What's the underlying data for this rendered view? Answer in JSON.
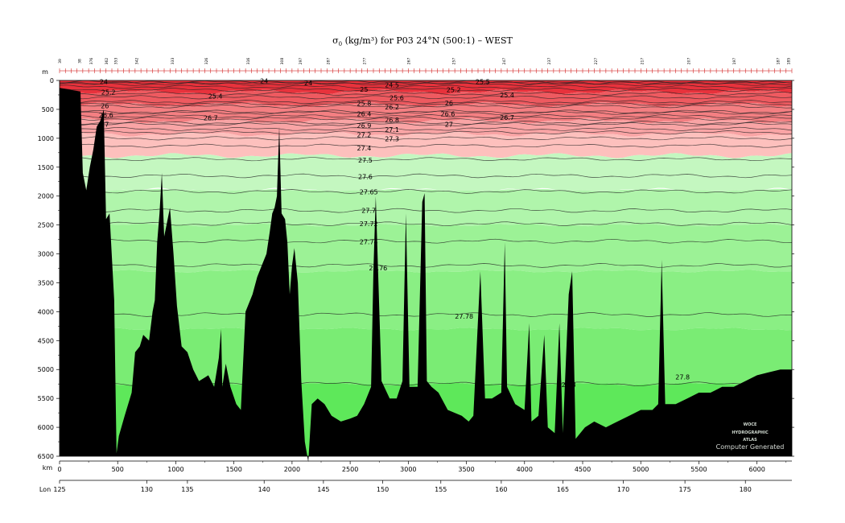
{
  "title": {
    "symbol": "σ",
    "subscript": "0",
    "rest": " (kg/m³) for P03 24°N (500:1) – WEST"
  },
  "axis_labels": {
    "depth_unit": "m",
    "distance_unit": "km",
    "lon": "Lon"
  },
  "watermark": {
    "line1": "WOCE",
    "line2": "HYDROGRAPHIC",
    "line3": "ATLAS",
    "line4": "Computer Generated"
  },
  "colors": {
    "r1": "#e8323c",
    "r2": "#ee5a60",
    "r3": "#f47f82",
    "r4": "#f9a4a5",
    "r5": "#fdc0bd",
    "g1": "#c4f7c0",
    "g2": "#b0f5ab",
    "g3": "#9cf296",
    "g4": "#8aef84",
    "g5": "#7aec74",
    "g6": "#5ee85a",
    "bathymetry": "#000000"
  },
  "chart_data": {
    "type": "heatmap",
    "description_of_axes": "section",
    "x": {
      "label": "km",
      "range": [
        0,
        6300
      ],
      "ticks": [
        0,
        500,
        1000,
        1500,
        2000,
        2500,
        3000,
        3500,
        4000,
        4500,
        5000,
        5500,
        6000
      ]
    },
    "y": {
      "label": "m",
      "range": [
        6500,
        0
      ],
      "ticks": [
        0,
        500,
        1000,
        1500,
        2000,
        2500,
        3000,
        3500,
        4000,
        4500,
        5000,
        5500,
        6000,
        6500
      ]
    },
    "lon": {
      "label": "Lon",
      "ticks": [
        {
          "km": 0,
          "label": "125"
        },
        {
          "km": 750,
          "label": "130"
        },
        {
          "km": 1100,
          "label": "135"
        },
        {
          "km": 1760,
          "label": "140"
        },
        {
          "km": 2270,
          "label": "145"
        },
        {
          "km": 2780,
          "label": "150"
        },
        {
          "km": 3280,
          "label": "155"
        },
        {
          "km": 3800,
          "label": "160"
        },
        {
          "km": 4330,
          "label": "165"
        },
        {
          "km": 4850,
          "label": "170"
        },
        {
          "km": 5380,
          "label": "175"
        },
        {
          "km": 5900,
          "label": "180"
        }
      ]
    },
    "stations": [
      {
        "km": 0,
        "label": "39"
      },
      {
        "km": 170,
        "label": "38"
      },
      {
        "km": 270,
        "label": "376"
      },
      {
        "km": 400,
        "label": "362"
      },
      {
        "km": 480,
        "label": "353"
      },
      {
        "km": 660,
        "label": "342"
      },
      {
        "km": 970,
        "label": "333"
      },
      {
        "km": 1260,
        "label": "326"
      },
      {
        "km": 1620,
        "label": "316"
      },
      {
        "km": 1910,
        "label": "308"
      },
      {
        "km": 2070,
        "label": "297"
      },
      {
        "km": 2310,
        "label": "287"
      },
      {
        "km": 2620,
        "label": "277"
      },
      {
        "km": 3000,
        "label": "267"
      },
      {
        "km": 3390,
        "label": "257"
      },
      {
        "km": 3820,
        "label": "247"
      },
      {
        "km": 4210,
        "label": "237"
      },
      {
        "km": 4610,
        "label": "227"
      },
      {
        "km": 5010,
        "label": "217"
      },
      {
        "km": 5410,
        "label": "207"
      },
      {
        "km": 5800,
        "label": "197"
      },
      {
        "km": 6180,
        "label": "187"
      },
      {
        "km": 6270,
        "label": "185"
      }
    ],
    "contours": [
      {
        "level": "24",
        "depth": 30,
        "labels": [
          {
            "km": 380,
            "depth": 20
          },
          {
            "km": 1760,
            "depth": 10
          },
          {
            "km": 2140,
            "depth": 40
          }
        ]
      },
      {
        "level": "24.5",
        "depth": 60,
        "labels": [
          {
            "km": 2860,
            "depth": 80
          }
        ]
      },
      {
        "level": "25",
        "depth": 110,
        "labels": [
          {
            "km": 2620,
            "depth": 150
          }
        ]
      },
      {
        "level": "25.2",
        "depth": 160,
        "labels": [
          {
            "km": 420,
            "depth": 200
          },
          {
            "km": 3390,
            "depth": 160
          }
        ]
      },
      {
        "level": "25.4",
        "depth": 230,
        "labels": [
          {
            "km": 1340,
            "depth": 270
          },
          {
            "km": 3850,
            "depth": 250
          }
        ]
      },
      {
        "level": "25.5",
        "depth": 40,
        "labels": [
          {
            "km": 3640,
            "depth": 20
          }
        ]
      },
      {
        "level": "25.6",
        "depth": 290,
        "labels": [
          {
            "km": 2900,
            "depth": 300
          }
        ]
      },
      {
        "level": "25.8",
        "depth": 370,
        "labels": [
          {
            "km": 2620,
            "depth": 400
          }
        ]
      },
      {
        "level": "26",
        "depth": 410,
        "labels": [
          {
            "km": 390,
            "depth": 440
          },
          {
            "km": 3350,
            "depth": 390
          }
        ]
      },
      {
        "level": "26.2",
        "depth": 450,
        "labels": [
          {
            "km": 2860,
            "depth": 460
          }
        ]
      },
      {
        "level": "26.4",
        "depth": 540,
        "labels": [
          {
            "km": 2620,
            "depth": 580
          }
        ]
      },
      {
        "level": "26.6",
        "depth": 560,
        "labels": [
          {
            "km": 400,
            "depth": 600
          },
          {
            "km": 3340,
            "depth": 580
          }
        ]
      },
      {
        "level": "26.7",
        "depth": 620,
        "labels": [
          {
            "km": 1300,
            "depth": 650
          },
          {
            "km": 3850,
            "depth": 640
          }
        ]
      },
      {
        "level": "26.8",
        "depth": 660,
        "labels": [
          {
            "km": 2860,
            "depth": 680
          }
        ]
      },
      {
        "level": "26.9",
        "depth": 730,
        "labels": [
          {
            "km": 2620,
            "depth": 780
          }
        ]
      },
      {
        "level": "27",
        "depth": 760,
        "labels": [
          {
            "km": 390,
            "depth": 760
          },
          {
            "km": 3350,
            "depth": 760
          }
        ]
      },
      {
        "level": "27.1",
        "depth": 840,
        "labels": [
          {
            "km": 2860,
            "depth": 850
          }
        ]
      },
      {
        "level": "27.2",
        "depth": 900,
        "labels": [
          {
            "km": 2620,
            "depth": 940
          }
        ]
      },
      {
        "level": "27.3",
        "depth": 1000,
        "labels": [
          {
            "km": 2860,
            "depth": 1010
          }
        ]
      },
      {
        "level": "27.4",
        "depth": 1130,
        "labels": [
          {
            "km": 2620,
            "depth": 1170
          }
        ]
      },
      {
        "level": "27.5",
        "depth": 1360,
        "labels": [
          {
            "km": 2630,
            "depth": 1380
          }
        ]
      },
      {
        "level": "27.6",
        "depth": 1650,
        "labels": [
          {
            "km": 2630,
            "depth": 1660
          }
        ]
      },
      {
        "level": "27.65",
        "depth": 1920,
        "labels": [
          {
            "km": 2660,
            "depth": 1930
          }
        ]
      },
      {
        "level": "27.7",
        "depth": 2250,
        "labels": [
          {
            "km": 2660,
            "depth": 2250
          }
        ]
      },
      {
        "level": "27.72",
        "depth": 2480,
        "labels": [
          {
            "km": 2660,
            "depth": 2480
          }
        ]
      },
      {
        "level": "27.74",
        "depth": 2780,
        "labels": [
          {
            "km": 2660,
            "depth": 2790
          }
        ]
      },
      {
        "level": "27.76",
        "depth": 3200,
        "labels": [
          {
            "km": 2740,
            "depth": 3240
          }
        ]
      },
      {
        "level": "27.78",
        "depth": 4050,
        "labels": [
          {
            "km": 3480,
            "depth": 4080
          }
        ]
      },
      {
        "level": "27.8",
        "depth": 5250,
        "labels": [
          {
            "km": 4380,
            "depth": 5260
          },
          {
            "km": 5360,
            "depth": 5130
          }
        ]
      }
    ],
    "bathymetry_km_depth": [
      [
        0,
        130
      ],
      [
        180,
        190
      ],
      [
        200,
        1600
      ],
      [
        230,
        1900
      ],
      [
        260,
        1500
      ],
      [
        290,
        1200
      ],
      [
        320,
        800
      ],
      [
        350,
        700
      ],
      [
        380,
        500
      ],
      [
        400,
        2400
      ],
      [
        430,
        2300
      ],
      [
        470,
        3800
      ],
      [
        490,
        6450
      ],
      [
        510,
        6150
      ],
      [
        560,
        5800
      ],
      [
        620,
        5400
      ],
      [
        650,
        4700
      ],
      [
        690,
        4600
      ],
      [
        720,
        4400
      ],
      [
        770,
        4500
      ],
      [
        800,
        4000
      ],
      [
        820,
        3800
      ],
      [
        840,
        2800
      ],
      [
        860,
        2300
      ],
      [
        880,
        1600
      ],
      [
        900,
        2700
      ],
      [
        920,
        2500
      ],
      [
        950,
        2200
      ],
      [
        980,
        3000
      ],
      [
        1010,
        3900
      ],
      [
        1050,
        4600
      ],
      [
        1100,
        4700
      ],
      [
        1150,
        5000
      ],
      [
        1200,
        5200
      ],
      [
        1280,
        5100
      ],
      [
        1330,
        5300
      ],
      [
        1370,
        4800
      ],
      [
        1390,
        4300
      ],
      [
        1400,
        5300
      ],
      [
        1430,
        4900
      ],
      [
        1470,
        5300
      ],
      [
        1520,
        5600
      ],
      [
        1560,
        5700
      ],
      [
        1600,
        4000
      ],
      [
        1640,
        3800
      ],
      [
        1660,
        3700
      ],
      [
        1700,
        3400
      ],
      [
        1740,
        3200
      ],
      [
        1780,
        3000
      ],
      [
        1810,
        2600
      ],
      [
        1830,
        2300
      ],
      [
        1850,
        2200
      ],
      [
        1870,
        2000
      ],
      [
        1890,
        800
      ],
      [
        1910,
        2300
      ],
      [
        1940,
        2400
      ],
      [
        1960,
        2800
      ],
      [
        1980,
        3700
      ],
      [
        2000,
        3200
      ],
      [
        2020,
        2900
      ],
      [
        2050,
        3500
      ],
      [
        2080,
        5200
      ],
      [
        2110,
        6250
      ],
      [
        2140,
        6600
      ],
      [
        2170,
        5600
      ],
      [
        2220,
        5500
      ],
      [
        2280,
        5600
      ],
      [
        2340,
        5800
      ],
      [
        2420,
        5900
      ],
      [
        2500,
        5850
      ],
      [
        2560,
        5800
      ],
      [
        2620,
        5600
      ],
      [
        2680,
        5300
      ],
      [
        2700,
        3300
      ],
      [
        2720,
        2000
      ],
      [
        2740,
        3300
      ],
      [
        2770,
        5200
      ],
      [
        2840,
        5500
      ],
      [
        2900,
        5500
      ],
      [
        2950,
        5200
      ],
      [
        2980,
        2300
      ],
      [
        3010,
        5300
      ],
      [
        3080,
        5300
      ],
      [
        3120,
        2100
      ],
      [
        3140,
        1950
      ],
      [
        3160,
        5200
      ],
      [
        3200,
        5300
      ],
      [
        3260,
        5400
      ],
      [
        3340,
        5700
      ],
      [
        3460,
        5800
      ],
      [
        3520,
        5900
      ],
      [
        3560,
        5800
      ],
      [
        3620,
        3300
      ],
      [
        3660,
        5500
      ],
      [
        3720,
        5500
      ],
      [
        3800,
        5400
      ],
      [
        3830,
        2800
      ],
      [
        3850,
        5300
      ],
      [
        3920,
        5600
      ],
      [
        4000,
        5700
      ],
      [
        4040,
        4200
      ],
      [
        4060,
        5900
      ],
      [
        4120,
        5800
      ],
      [
        4170,
        4400
      ],
      [
        4200,
        6000
      ],
      [
        4260,
        6100
      ],
      [
        4300,
        4200
      ],
      [
        4330,
        6100
      ],
      [
        4380,
        3700
      ],
      [
        4410,
        3300
      ],
      [
        4440,
        6200
      ],
      [
        4520,
        6000
      ],
      [
        4600,
        5900
      ],
      [
        4700,
        6000
      ],
      [
        4800,
        5900
      ],
      [
        4900,
        5800
      ],
      [
        5000,
        5700
      ],
      [
        5100,
        5700
      ],
      [
        5150,
        5600
      ],
      [
        5180,
        3100
      ],
      [
        5210,
        5600
      ],
      [
        5300,
        5600
      ],
      [
        5400,
        5500
      ],
      [
        5500,
        5400
      ],
      [
        5600,
        5400
      ],
      [
        5700,
        5300
      ],
      [
        5800,
        5300
      ],
      [
        5900,
        5200
      ],
      [
        6000,
        5100
      ],
      [
        6100,
        5050
      ],
      [
        6200,
        5000
      ],
      [
        6300,
        5000
      ]
    ],
    "color_bands": [
      {
        "from": 0,
        "to": 200,
        "color": "r1"
      },
      {
        "from": 200,
        "to": 420,
        "color": "r2"
      },
      {
        "from": 420,
        "to": 700,
        "color": "r3"
      },
      {
        "from": 700,
        "to": 930,
        "color": "r4"
      },
      {
        "from": 930,
        "to": 1300,
        "color": "r5"
      },
      {
        "from": 1300,
        "to": 1900,
        "color": "g1"
      },
      {
        "from": 1900,
        "to": 2500,
        "color": "g2"
      },
      {
        "from": 2500,
        "to": 3300,
        "color": "g3"
      },
      {
        "from": 3300,
        "to": 4300,
        "color": "g4"
      },
      {
        "from": 4300,
        "to": 5250,
        "color": "g5"
      },
      {
        "from": 5250,
        "to": 6500,
        "color": "g6"
      }
    ]
  }
}
